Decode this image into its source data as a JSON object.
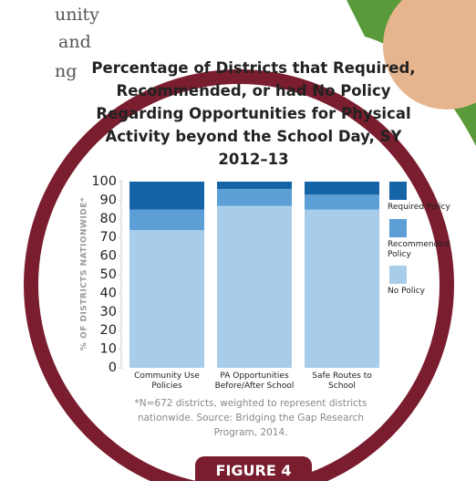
{
  "page_text_fragments": [
    "unity",
    "and",
    "ng"
  ],
  "chart_data": {
    "type": "stacked_bar",
    "title": "Percentage of Districts that Required, Recommended, or had No Policy Regarding Opportunities for Physical Activity beyond the School Day, SY 2012–13",
    "y_label": "% OF DISTRICTS NATIONWIDE*",
    "categories": [
      "Community Use Policies",
      "PA Opportunities Before/After School",
      "Safe Routes to School"
    ],
    "series": [
      {
        "name": "No Policy",
        "color": "#a8cdea",
        "values": [
          74,
          87,
          85
        ]
      },
      {
        "name": "Recommended Policy",
        "color": "#5b9fd6",
        "values": [
          11,
          9,
          8
        ]
      },
      {
        "name": "Required Policy",
        "color": "#1664a8",
        "values": [
          15,
          4,
          7
        ]
      }
    ],
    "ylim": [
      0,
      100
    ],
    "yticks": [
      0,
      10,
      20,
      30,
      40,
      50,
      60,
      70,
      80,
      90,
      100
    ],
    "legend": "right",
    "footnote": "*N=672 districts, weighted to represent districts nationwide. Source: Bridging the Gap Research Program, 2014.",
    "figure_label": "FIGURE 4"
  }
}
